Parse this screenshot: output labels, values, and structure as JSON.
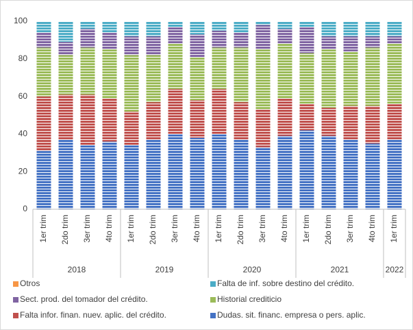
{
  "chart_data": {
    "type": "stacked_bar",
    "groups": [
      {
        "label": "2018",
        "categories": [
          "1er trim",
          "2do trim",
          "3er trim",
          "4to trim"
        ]
      },
      {
        "label": "2019",
        "categories": [
          "1er trim",
          "2do trim",
          "3er trim",
          "4to trim"
        ]
      },
      {
        "label": "2020",
        "categories": [
          "1er trim",
          "2do trim",
          "3er trim",
          "4to trim"
        ]
      },
      {
        "label": "2021",
        "categories": [
          "1er trim",
          "2do trim",
          "3er trim",
          "4to trim"
        ]
      },
      {
        "label": "2022",
        "categories": [
          "1er trim"
        ]
      }
    ],
    "series": [
      {
        "name": "Dudas.  sit. financ. empresa o pers. aplic.",
        "color": "#4472c4",
        "values": [
          31,
          37,
          34,
          36,
          34,
          37,
          40,
          38,
          40,
          37,
          33,
          39,
          42,
          39,
          37,
          35,
          37
        ]
      },
      {
        "name": "Falta  infor. finan. nuev. aplic. del crédito.",
        "color": "#c0504d",
        "values": [
          29,
          24,
          27,
          23,
          18,
          20,
          24,
          20,
          24,
          20,
          20,
          20,
          14,
          15,
          18,
          20,
          19
        ]
      },
      {
        "name": "Historial crediticio",
        "color": "#9bbb59",
        "values": [
          26,
          21,
          25,
          26,
          30,
          25,
          24,
          23,
          22,
          29,
          32,
          29,
          27,
          31,
          29,
          31,
          32
        ]
      },
      {
        "name": "Sect. prod. del tomador del crédito.",
        "color": "#8064a2",
        "values": [
          8,
          7,
          10,
          9,
          10,
          10,
          9,
          12,
          9,
          8,
          13,
          8,
          14,
          7,
          8,
          6,
          4
        ]
      },
      {
        "name": "Falta de inf. sobre destino del crédito.",
        "color": "#4bacc6",
        "values": [
          6,
          11,
          4,
          6,
          8,
          8,
          3,
          7,
          5,
          6,
          2,
          4,
          3,
          8,
          8,
          8,
          8
        ]
      },
      {
        "name": "Otros",
        "color": "#f79646",
        "values": [
          0,
          0,
          0,
          0,
          0,
          0,
          0,
          0,
          0,
          0,
          0,
          0,
          0,
          0,
          0,
          0,
          0
        ]
      }
    ],
    "ylim": [
      0,
      100
    ],
    "yticks": [
      0,
      20,
      40,
      60,
      80,
      100
    ],
    "grid": false,
    "legend": "bottom"
  }
}
